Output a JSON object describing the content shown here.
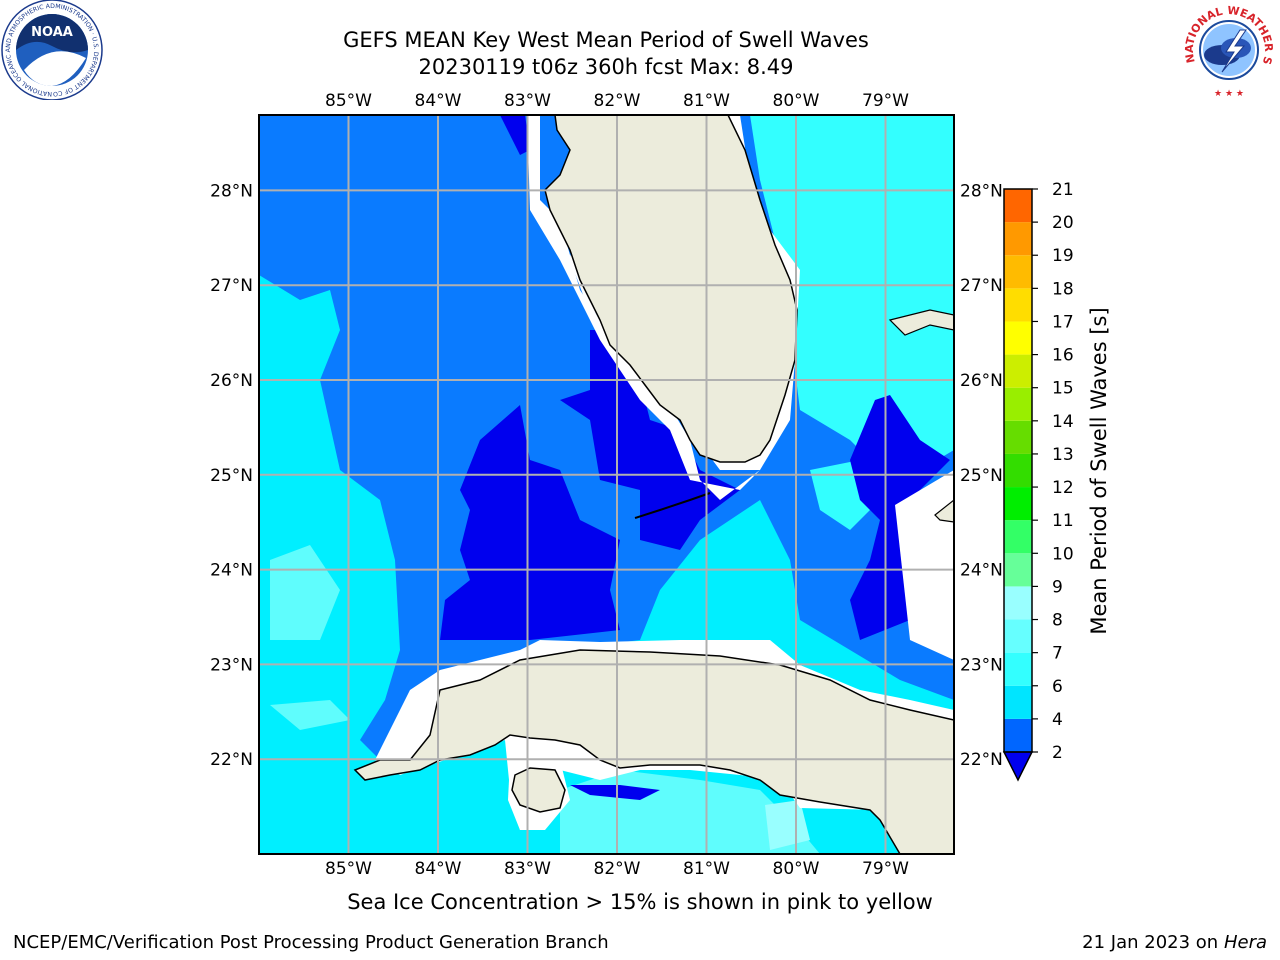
{
  "header": {
    "title_line1": "GEFS MEAN Key West Mean Period of Swell Waves",
    "title_line2": "20230119 t06z 360h fcst   Max: 8.49"
  },
  "map": {
    "lon_ticks": [
      "85°W",
      "84°W",
      "83°W",
      "82°W",
      "81°W",
      "80°W",
      "79°W"
    ],
    "lat_ticks": [
      "28°N",
      "27°N",
      "26°N",
      "25°N",
      "24°N",
      "23°N",
      "22°N"
    ],
    "extent": {
      "lon": [
        -86,
        -78.3
      ],
      "lat": [
        21,
        28.8
      ]
    }
  },
  "colorbar": {
    "label": "Mean Period of Swell Waves [s]",
    "ticks": [
      "2",
      "4",
      "6",
      "7",
      "8",
      "9",
      "10",
      "11",
      "12",
      "13",
      "14",
      "15",
      "16",
      "17",
      "18",
      "19",
      "20",
      "21"
    ],
    "colors": [
      "#0066ff",
      "#00e5ff",
      "#33ffff",
      "#66ffff",
      "#99ffff",
      "#66ff99",
      "#33ff66",
      "#00ee00",
      "#33dd00",
      "#66dd00",
      "#99ee00",
      "#ccee00",
      "#ffff00",
      "#ffdd00",
      "#ffbb00",
      "#ff9900",
      "#ff6600",
      "#ff3300",
      "#ff0000"
    ],
    "underflow_color": "#0000ee"
  },
  "footnote": "Sea Ice Concentration > 15% is shown in pink to yellow",
  "footer": {
    "credit": "NCEP/EMC/Verification Post Processing Product Generation Branch",
    "date": "21 Jan 2023 on ",
    "host": "Hera"
  },
  "logos": {
    "noaa_text": "NOAA",
    "noaa_ring": "NATIONAL OCEANIC AND ATMOSPHERIC ADMINISTRATION · U.S. DEPARTMENT OF COMMERCE",
    "nws_ring": "NATIONAL WEATHER SERVICE"
  }
}
